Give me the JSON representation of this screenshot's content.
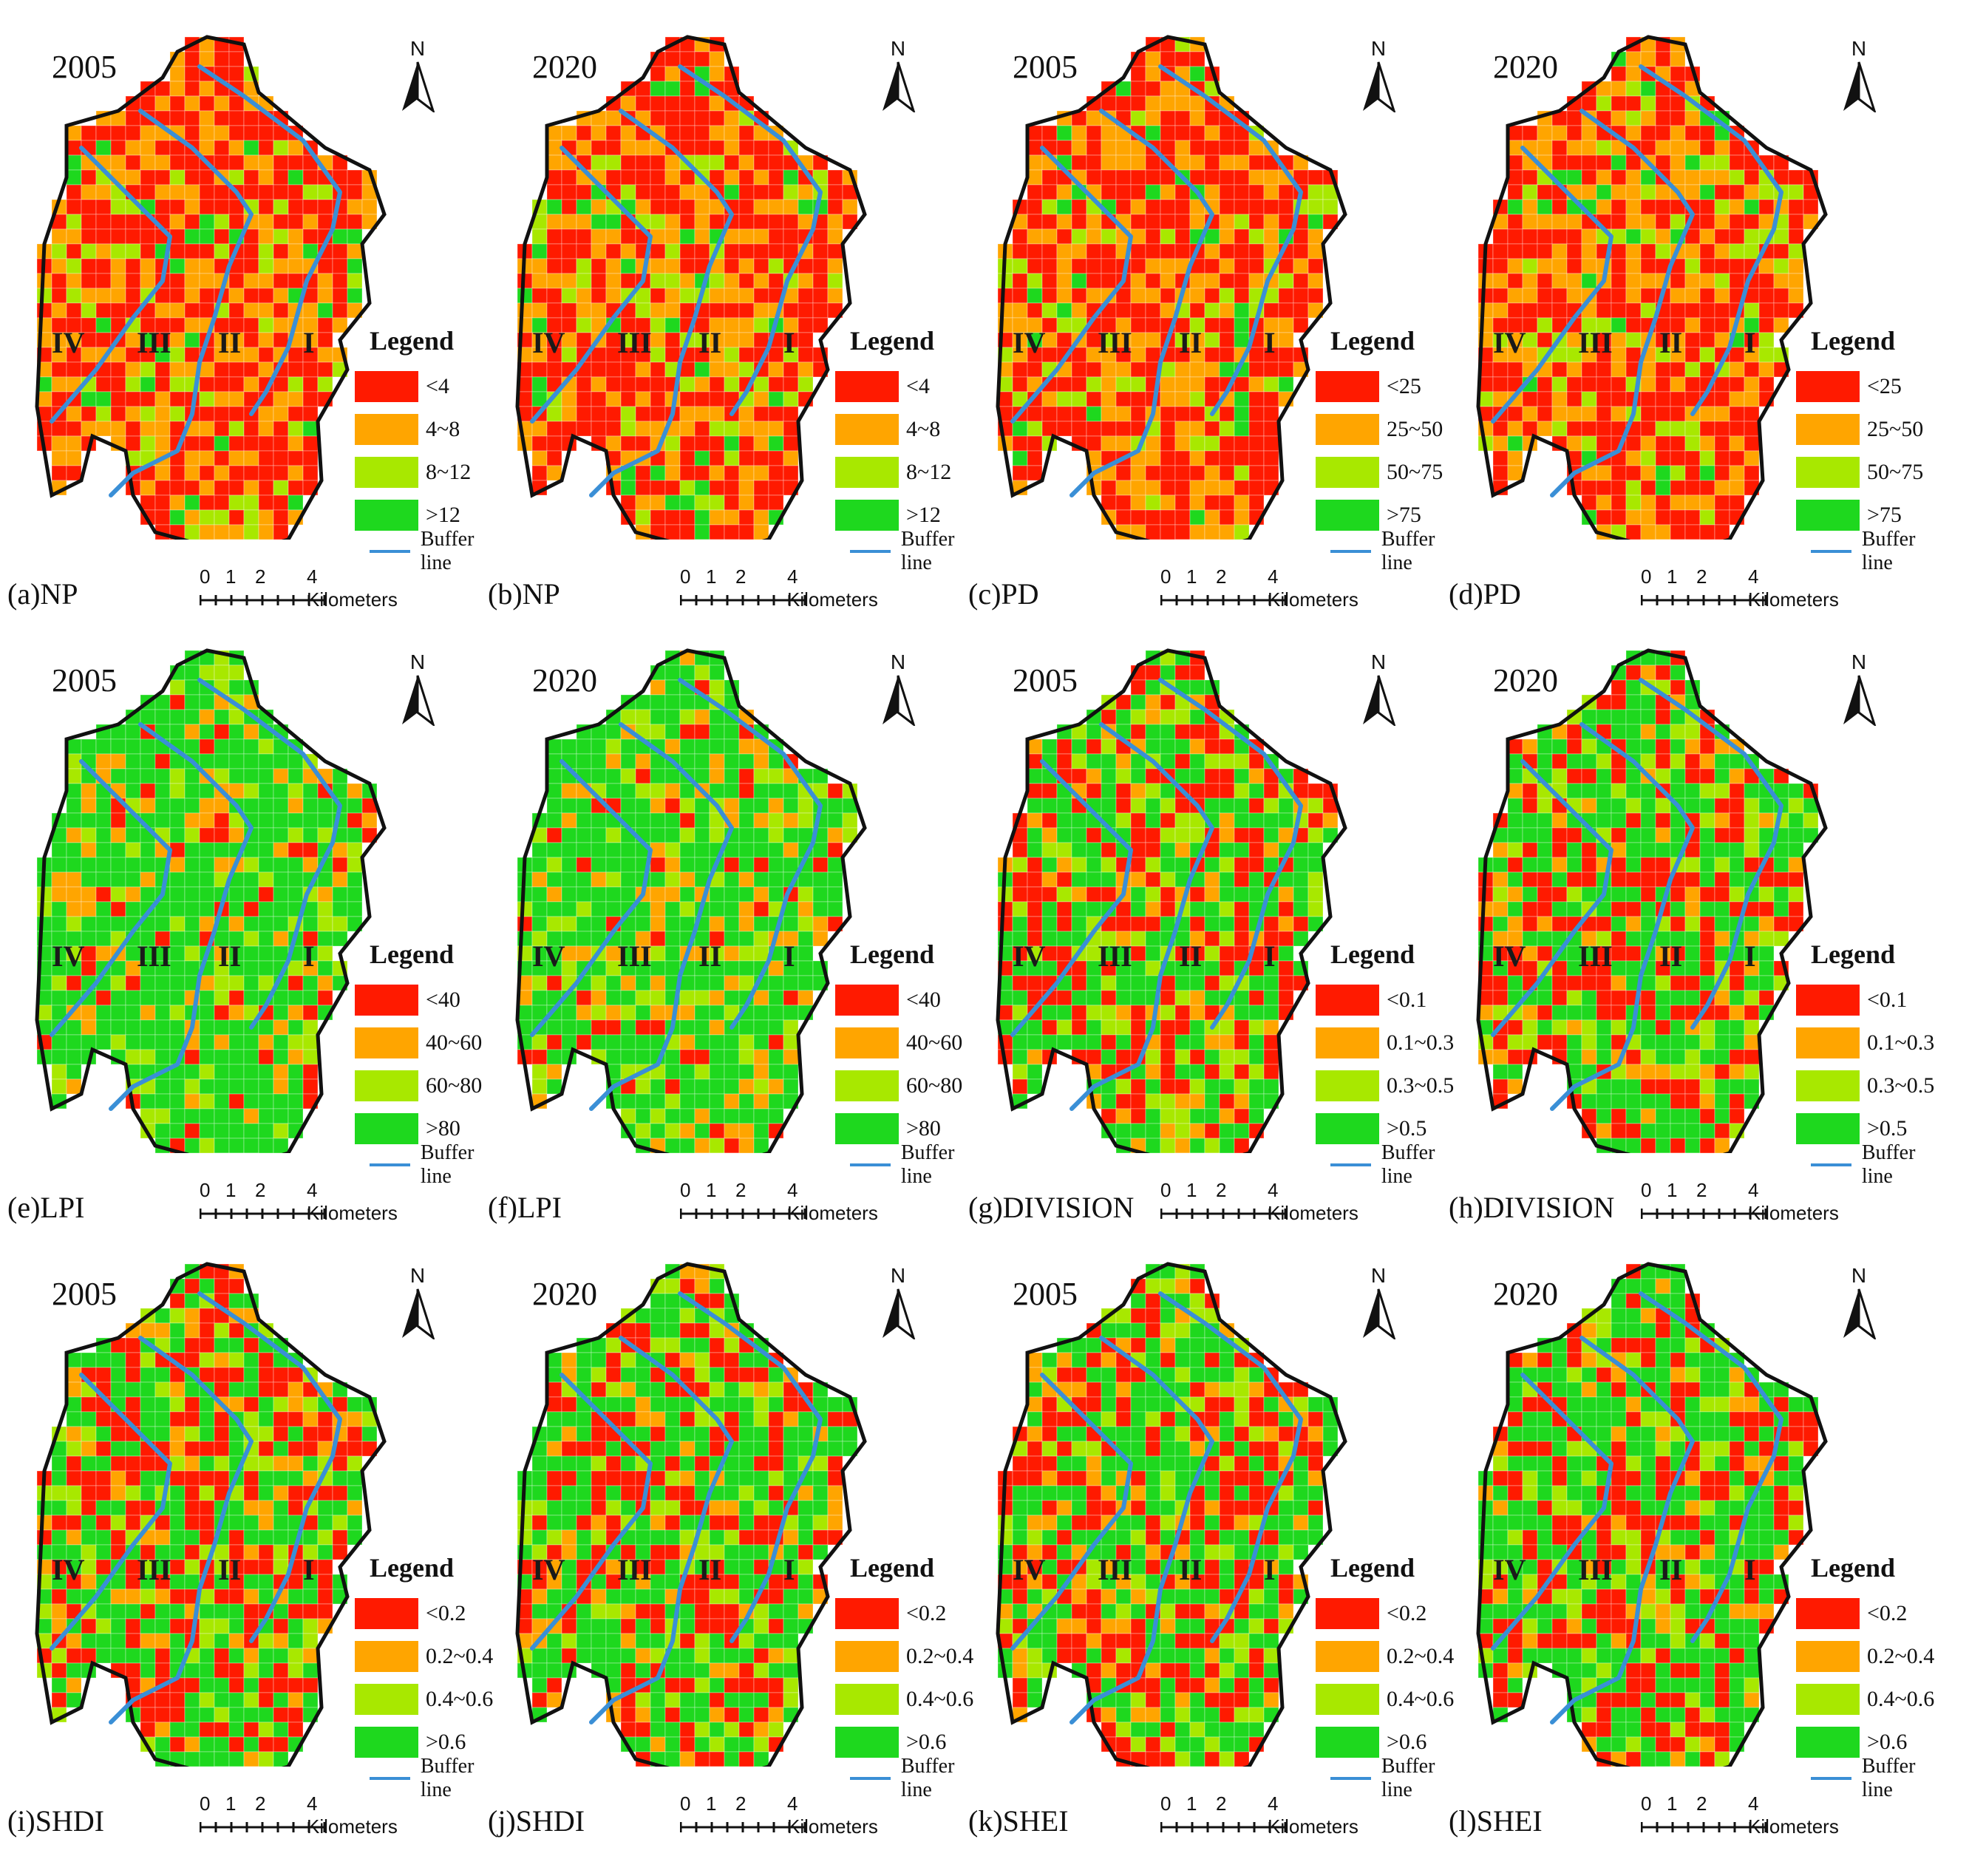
{
  "panels": [
    {
      "caption": "(a)NP",
      "year": "2005",
      "mix": [
        0.55,
        0.3,
        0.1,
        0.05
      ],
      "legend": [
        "<4",
        "4~8",
        "8~12",
        ">12"
      ]
    },
    {
      "caption": "(b)NP",
      "year": "2020",
      "mix": [
        0.5,
        0.32,
        0.12,
        0.06
      ],
      "legend": [
        "<4",
        "4~8",
        "8~12",
        ">12"
      ]
    },
    {
      "caption": "(c)PD",
      "year": "2005",
      "mix": [
        0.55,
        0.3,
        0.1,
        0.05
      ],
      "legend": [
        "<25",
        "25~50",
        "50~75",
        ">75"
      ]
    },
    {
      "caption": "(d)PD",
      "year": "2020",
      "mix": [
        0.5,
        0.32,
        0.12,
        0.06
      ],
      "legend": [
        "<25",
        "25~50",
        "50~75",
        ">75"
      ]
    },
    {
      "caption": "(e)LPI",
      "year": "2005",
      "mix": [
        0.08,
        0.1,
        0.12,
        0.7
      ],
      "legend": [
        "<40",
        "40~60",
        "60~80",
        ">80"
      ]
    },
    {
      "caption": "(f)LPI",
      "year": "2020",
      "mix": [
        0.1,
        0.14,
        0.14,
        0.62
      ],
      "legend": [
        "<40",
        "40~60",
        "60~80",
        ">80"
      ]
    },
    {
      "caption": "(g)DIVISION",
      "year": "2005",
      "mix": [
        0.35,
        0.12,
        0.13,
        0.4
      ],
      "legend": [
        "<0.1",
        "0.1~0.3",
        "0.3~0.5",
        ">0.5"
      ]
    },
    {
      "caption": "(h)DIVISION",
      "year": "2020",
      "mix": [
        0.33,
        0.12,
        0.13,
        0.42
      ],
      "legend": [
        "<0.1",
        "0.1~0.3",
        "0.3~0.5",
        ">0.5"
      ]
    },
    {
      "caption": "(i)SHDI",
      "year": "2005",
      "mix": [
        0.35,
        0.12,
        0.13,
        0.4
      ],
      "legend": [
        "<0.2",
        "0.2~0.4",
        "0.4~0.6",
        ">0.6"
      ]
    },
    {
      "caption": "(j)SHDI",
      "year": "2020",
      "mix": [
        0.3,
        0.12,
        0.14,
        0.44
      ],
      "legend": [
        "<0.2",
        "0.2~0.4",
        "0.4~0.6",
        ">0.6"
      ]
    },
    {
      "caption": "(k)SHEI",
      "year": "2005",
      "mix": [
        0.35,
        0.12,
        0.13,
        0.4
      ],
      "legend": [
        "<0.2",
        "0.2~0.4",
        "0.4~0.6",
        ">0.6"
      ]
    },
    {
      "caption": "(l)SHEI",
      "year": "2020",
      "mix": [
        0.3,
        0.12,
        0.14,
        0.44
      ],
      "legend": [
        "<0.2",
        "0.2~0.4",
        "0.4~0.6",
        ">0.6"
      ]
    }
  ],
  "legend_title": "Legend",
  "buffer_label": "Buffer line",
  "north_label": "N",
  "zones": [
    "IV",
    "III",
    "II",
    "I"
  ],
  "scale_ticks": [
    "0",
    "1",
    "2",
    "4 Kilometers"
  ],
  "class_colors": [
    "#ff1a00",
    "#ffa500",
    "#a8e800",
    "#1ed81e"
  ],
  "buffer_color": "#3a8fd6"
}
